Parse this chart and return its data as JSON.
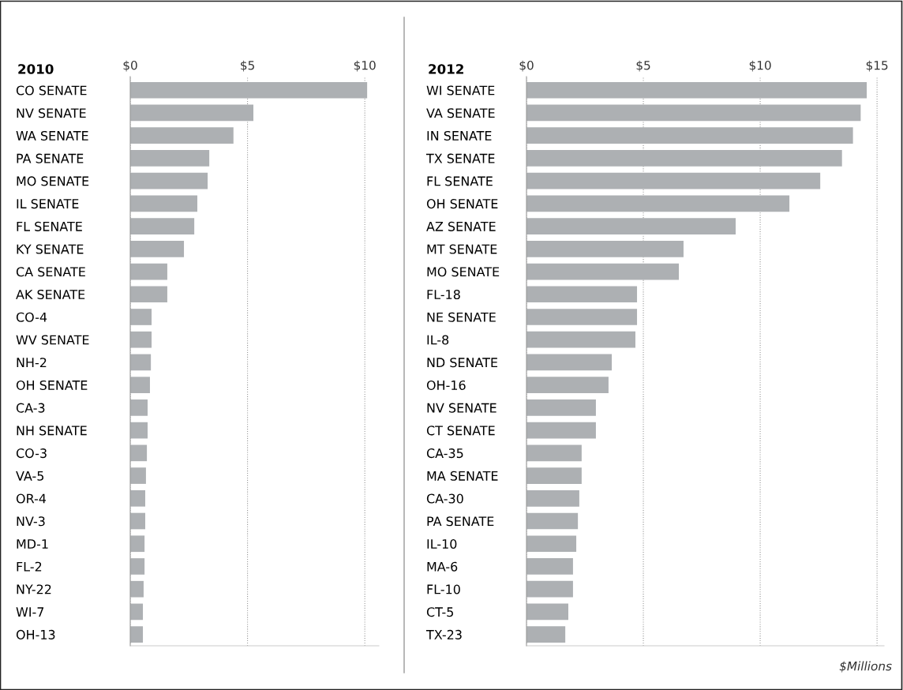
{
  "chart_data": [
    {
      "type": "bar",
      "orientation": "horizontal",
      "title": "2010",
      "categories": [
        "CO SENATE",
        "NV SENATE",
        "WA SENATE",
        "PA SENATE",
        "MO SENATE",
        "IL SENATE",
        "FL SENATE",
        "KY SENATE",
        "CA SENATE",
        "AK SENATE",
        "CO-4",
        "WV SENATE",
        "NH-2",
        "OH SENATE",
        "CA-3",
        "NH SENATE",
        "CO-3",
        "VA-5",
        "OR-4",
        "NV-3",
        "MD-1",
        "FL-2",
        "NY-22",
        "WI-7",
        "OH-13"
      ],
      "values": [
        10.1,
        5.25,
        4.4,
        3.37,
        3.3,
        2.86,
        2.73,
        2.29,
        1.58,
        1.58,
        0.91,
        0.91,
        0.88,
        0.84,
        0.74,
        0.74,
        0.71,
        0.67,
        0.64,
        0.64,
        0.61,
        0.61,
        0.57,
        0.54,
        0.54
      ],
      "color": "#adb0b3",
      "xlim": [
        0,
        10.6
      ],
      "xticks": [
        {
          "value": 0,
          "label": "$0"
        },
        {
          "value": 5,
          "label": "$5"
        },
        {
          "value": 10,
          "label": "$10"
        }
      ],
      "grid": "x",
      "line_style": "dotted"
    },
    {
      "type": "bar",
      "orientation": "horizontal",
      "title": "2012",
      "categories": [
        "WI SENATE",
        "VA SENATE",
        "IN SENATE",
        "TX SENATE",
        "FL SENATE",
        "OH SENATE",
        "AZ SENATE",
        "MT SENATE",
        "MO SENATE",
        "FL-18",
        "NE SENATE",
        "IL-8",
        "ND SENATE",
        "OH-16",
        "NV SENATE",
        "CT SENATE",
        "CA-35",
        "MA SENATE",
        "CA-30",
        "PA SENATE",
        "IL-10",
        "MA-6",
        "FL-10",
        "CT-5",
        "TX-23"
      ],
      "values": [
        14.56,
        14.3,
        13.97,
        13.5,
        12.57,
        11.25,
        8.95,
        6.72,
        6.52,
        4.73,
        4.73,
        4.66,
        3.65,
        3.51,
        2.97,
        2.97,
        2.36,
        2.36,
        2.26,
        2.2,
        2.13,
        1.99,
        1.99,
        1.79,
        1.66
      ],
      "color": "#adb0b3",
      "xlim": [
        0,
        15.3
      ],
      "xticks": [
        {
          "value": 0,
          "label": "$0"
        },
        {
          "value": 5,
          "label": "$5"
        },
        {
          "value": 10,
          "label": "$10"
        },
        {
          "value": 15,
          "label": "$15"
        }
      ],
      "grid": "x",
      "line_style": "dotted",
      "annotations": [
        "$Millions"
      ]
    }
  ]
}
